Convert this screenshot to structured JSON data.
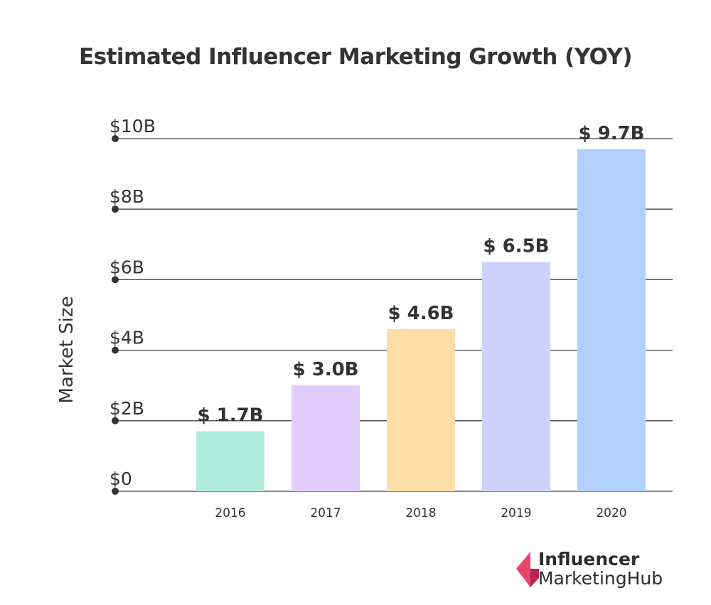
{
  "chart_data": {
    "type": "bar",
    "title": "Estimated Influencer Marketing Growth (YOY)",
    "ylabel": "Market Size",
    "xlabel": "",
    "categories": [
      "2016",
      "2017",
      "2018",
      "2019",
      "2020"
    ],
    "values": [
      1.7,
      3.0,
      4.6,
      6.5,
      9.7
    ],
    "data_labels": [
      "$ 1.7B",
      "$ 3.0B",
      "$ 4.6B",
      "$ 6.5B",
      "$ 9.7B"
    ],
    "colors": [
      "#b0ecdc",
      "#e2cbfd",
      "#fddea6",
      "#cdd3fd",
      "#b3cffd"
    ],
    "y_ticks": [
      0,
      2,
      4,
      6,
      8,
      10
    ],
    "y_tick_labels": [
      "$0",
      "$2B",
      "$4B",
      "$6B",
      "$8B",
      "$10B"
    ],
    "ylim": [
      0,
      10
    ],
    "unit": "billion USD",
    "grid": true,
    "legend": "none"
  },
  "logo": {
    "line1": "Influencer",
    "line2": "MarketingHub",
    "color": "#e8456d"
  }
}
